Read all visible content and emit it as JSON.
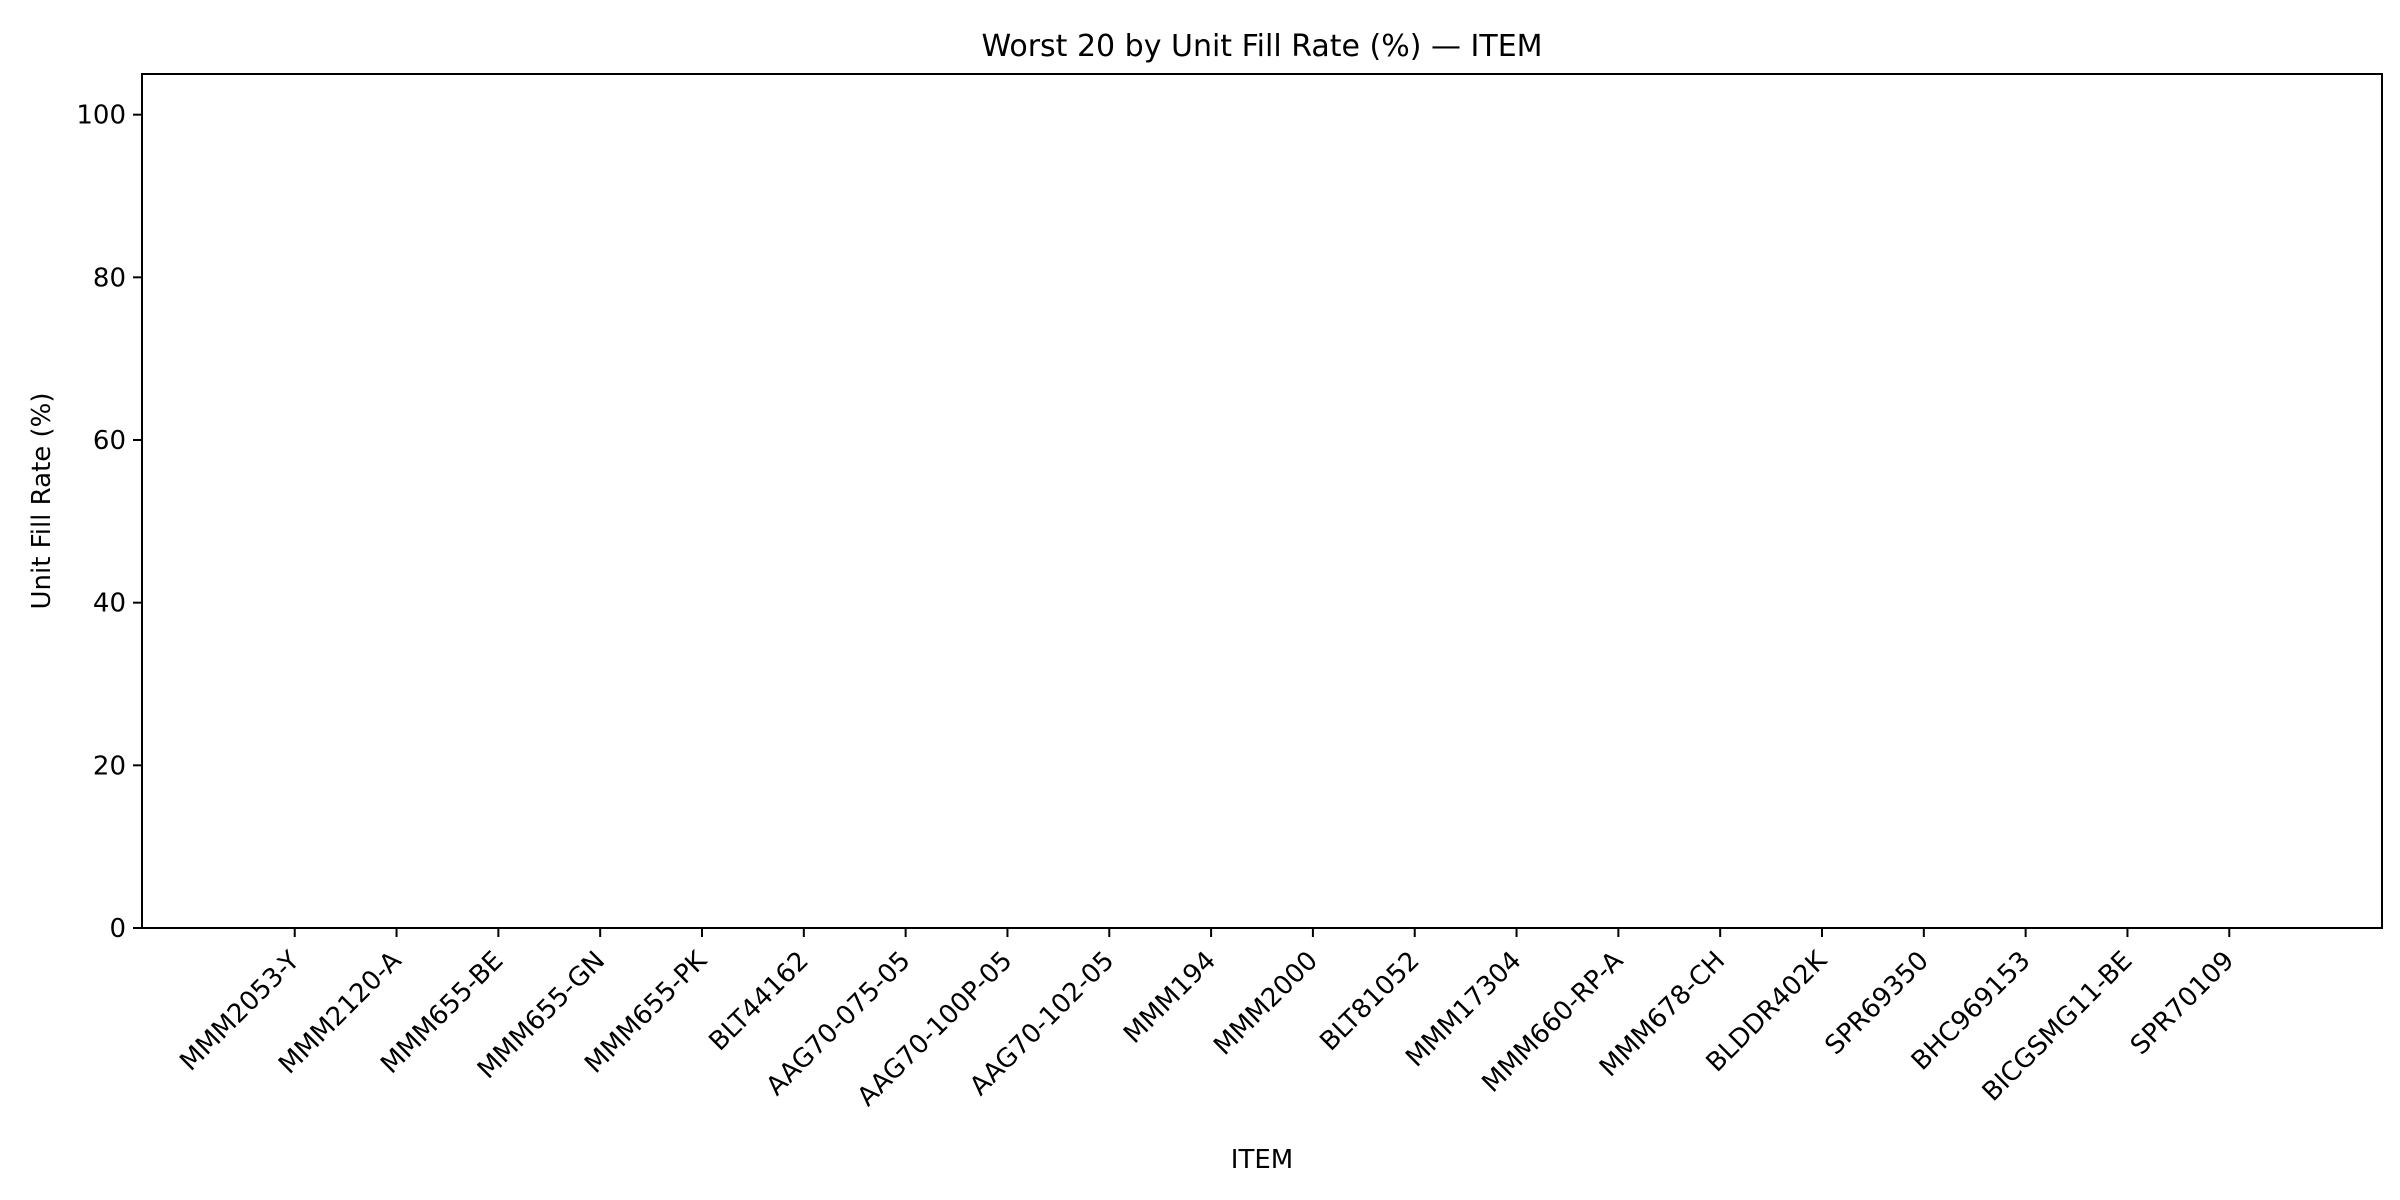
{
  "chart_data": {
    "type": "bar",
    "title": "Worst 20 by Unit Fill Rate (%) — ITEM",
    "xlabel": "ITEM",
    "ylabel": "Unit Fill Rate (%)",
    "ylim": [
      0,
      105
    ],
    "yticks": [
      0,
      20,
      40,
      60,
      80,
      100
    ],
    "grid": false,
    "categories": [
      "MMM2053-Y",
      "MMM2120-A",
      "MMM655-BE",
      "MMM655-GN",
      "MMM655-PK",
      "BLT44162",
      "AAG70-075-05",
      "AAG70-100P-05",
      "AAG70-102-05",
      "MMM194",
      "MMM2000",
      "BLT81052",
      "MMM17304",
      "MMM660-RP-A",
      "MMM678-CH",
      "BLDDR402K",
      "SPR69350",
      "BHC969153",
      "BICGSMG11-BE",
      "SPR70109"
    ],
    "values": [
      0,
      0,
      0,
      0,
      0,
      0,
      0,
      0,
      0,
      0,
      0,
      0,
      0,
      0,
      0,
      0,
      0,
      0,
      0,
      0
    ],
    "bar_color": "#1f77b4"
  }
}
